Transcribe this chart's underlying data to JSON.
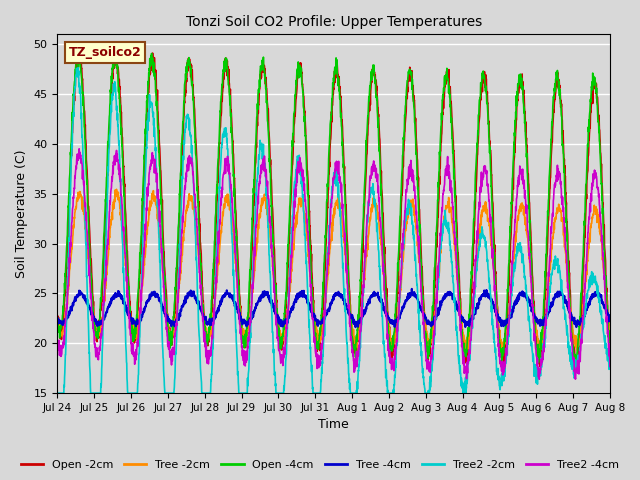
{
  "title": "Tonzi Soil CO2 Profile: Upper Temperatures",
  "xlabel": "Time",
  "ylabel": "Soil Temperature (C)",
  "ylim": [
    15,
    51
  ],
  "yticks": [
    15,
    20,
    25,
    30,
    35,
    40,
    45,
    50
  ],
  "annotation_text": "TZ_soilco2",
  "annotation_color": "#8B0000",
  "annotation_bg": "#FFFFCC",
  "annotation_border": "#8B4513",
  "background_color": "#D8D8D8",
  "plot_bg_color": "#D8D8D8",
  "grid_color": "white",
  "series": {
    "Open -2cm": {
      "color": "#CC0000",
      "lw": 1.2
    },
    "Tree -2cm": {
      "color": "#FF8C00",
      "lw": 1.2
    },
    "Open -4cm": {
      "color": "#00CC00",
      "lw": 1.2
    },
    "Tree -4cm": {
      "color": "#0000CC",
      "lw": 1.5
    },
    "Tree2 -2cm": {
      "color": "#00CCCC",
      "lw": 1.2
    },
    "Tree2 -4cm": {
      "color": "#CC00CC",
      "lw": 1.2
    }
  },
  "xtick_labels": [
    "Jul 24",
    "Jul 25",
    "Jul 26",
    "Jul 27",
    "Jul 28",
    "Jul 29",
    "Jul 30",
    "Jul 31",
    "Aug 1",
    "Aug 2",
    "Aug 3",
    "Aug 4",
    "Aug 5",
    "Aug 6",
    "Aug 7",
    "Aug 8"
  ],
  "n_days": 15,
  "points_per_day": 144,
  "figsize": [
    6.4,
    4.8
  ],
  "dpi": 100
}
